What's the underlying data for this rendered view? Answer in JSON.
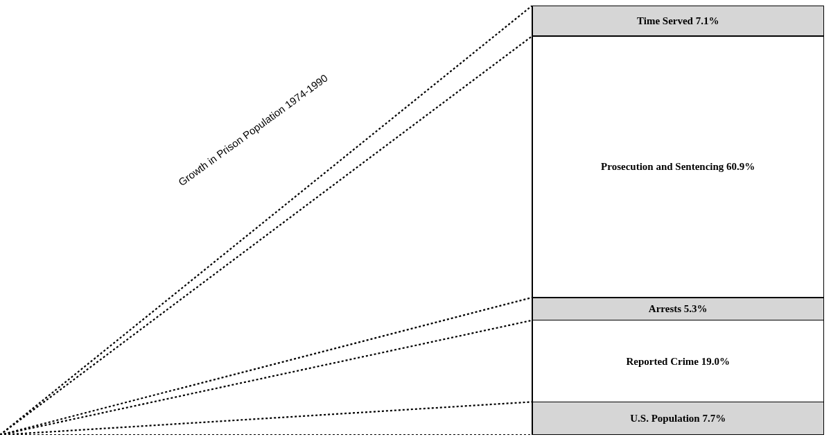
{
  "chart_data": {
    "type": "bar",
    "stacked": true,
    "title": "Growth in Prison Population 1974-1990",
    "categories": [
      null
    ],
    "tick_labels": false,
    "series": [
      {
        "color": "#d6d6d6",
        "values": [
          7.7
        ],
        "value_labels": [
          "U.S. Population 7.7%"
        ]
      },
      {
        "color": "#ffffff",
        "values": [
          19.0
        ],
        "value_labels": [
          "Reported Crime 19.0%"
        ]
      },
      {
        "color": "#d6d6d6",
        "values": [
          5.3
        ],
        "value_labels": [
          "Arrests 5.3%"
        ]
      },
      {
        "color": "#ffffff",
        "values": [
          60.9
        ],
        "value_labels": [
          "Prosecution and Sentencing 60.9%"
        ]
      },
      {
        "color": "#d6d6d6",
        "values": [
          7.1
        ],
        "value_labels": [
          "Time Served 7.1%"
        ]
      }
    ]
  }
}
